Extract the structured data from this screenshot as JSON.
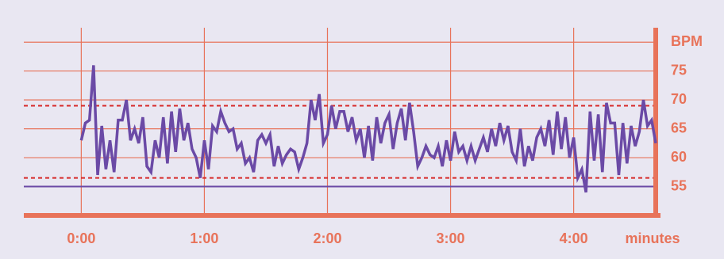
{
  "chart_data": {
    "type": "line",
    "x_label": "minutes",
    "x": [
      0,
      2,
      4,
      6,
      8,
      10,
      12,
      14,
      16,
      18,
      20,
      22,
      24,
      26,
      28,
      30,
      32,
      34,
      36,
      38,
      40,
      42,
      44,
      46,
      48,
      50,
      52,
      54,
      56,
      58,
      60,
      62,
      64,
      66,
      68,
      70,
      72,
      74,
      76,
      78,
      80,
      82,
      84,
      86,
      88,
      90,
      92,
      94,
      96,
      98,
      100,
      102,
      104,
      106,
      108,
      110,
      112,
      114,
      116,
      118,
      120,
      122,
      124,
      126,
      128,
      130,
      132,
      134,
      136,
      138,
      140,
      142,
      144,
      146,
      148,
      150,
      152,
      154,
      156,
      158,
      160,
      162,
      164,
      166,
      168,
      170,
      172,
      174,
      176,
      178,
      180,
      182,
      184,
      186,
      188,
      190,
      192,
      194,
      196,
      198,
      200,
      202,
      204,
      206,
      208,
      210,
      212,
      214,
      216,
      218,
      220,
      222,
      224,
      226,
      228,
      230,
      232,
      234,
      236,
      238,
      240,
      242,
      244,
      246,
      248,
      250,
      252,
      254,
      256,
      258,
      260,
      262,
      264,
      266,
      268,
      270,
      272,
      274,
      276,
      278,
      280
    ],
    "series": [
      {
        "color": "#6b4aa6",
        "values": [
          63,
          66,
          66.5,
          76,
          57,
          65.5,
          58,
          63,
          57.5,
          66.5,
          66.5,
          70,
          63,
          65,
          62.5,
          67,
          58.5,
          57.5,
          63,
          60,
          67,
          59,
          68,
          61,
          68.5,
          63,
          66,
          61.5,
          60,
          56.5,
          63,
          58,
          65.5,
          64.5,
          68,
          66,
          64.5,
          65,
          61.5,
          62.5,
          59,
          60,
          57.5,
          63,
          64,
          62.5,
          64,
          58.5,
          62,
          59,
          60.5,
          61.5,
          61,
          58,
          60,
          62.5,
          70,
          66.5,
          71,
          62.5,
          64,
          69,
          65,
          68,
          68,
          64.5,
          67,
          63,
          65,
          60,
          65.5,
          59.5,
          67,
          62.5,
          66,
          67.5,
          61.5,
          66,
          68.5,
          63,
          69.5,
          64.5,
          58.5,
          60,
          62,
          60.5,
          60,
          62,
          58.5,
          63,
          59.5,
          64.5,
          61,
          62,
          59.5,
          62,
          59.5,
          61.5,
          63.5,
          61,
          65,
          62,
          66,
          63,
          65.5,
          61,
          59.5,
          65,
          58.5,
          62,
          59.5,
          63.5,
          65,
          62,
          66.5,
          60.5,
          68,
          61.5,
          67,
          60,
          63.5,
          56.5,
          58,
          54,
          68,
          59.5,
          67.5,
          57.5,
          69.5,
          66,
          66,
          57,
          66,
          59,
          65.5,
          62,
          64.5,
          70,
          65.5,
          66.5,
          62.5
        ]
      }
    ],
    "xlim": [
      -28,
      280
    ],
    "xticks": [
      {
        "value": 0,
        "label": "0:00"
      },
      {
        "value": 60,
        "label": "1:00"
      },
      {
        "value": 120,
        "label": "2:00"
      },
      {
        "value": 180,
        "label": "3:00"
      },
      {
        "value": 240,
        "label": "4:00"
      }
    ],
    "ylim": [
      50,
      82.5
    ],
    "yticks": [
      55,
      60,
      65,
      70,
      75,
      {
        "value": 80,
        "label": "BPM"
      }
    ],
    "grid": true,
    "axis_color": "#e8735a",
    "reference_lines": [
      {
        "value": 55,
        "color": "#6b4aa6",
        "style": "solid"
      },
      {
        "value": 69,
        "color": "#d62a2a",
        "style": "dashed"
      },
      {
        "value": 56.5,
        "color": "#d62a2a",
        "style": "dashed"
      }
    ]
  }
}
